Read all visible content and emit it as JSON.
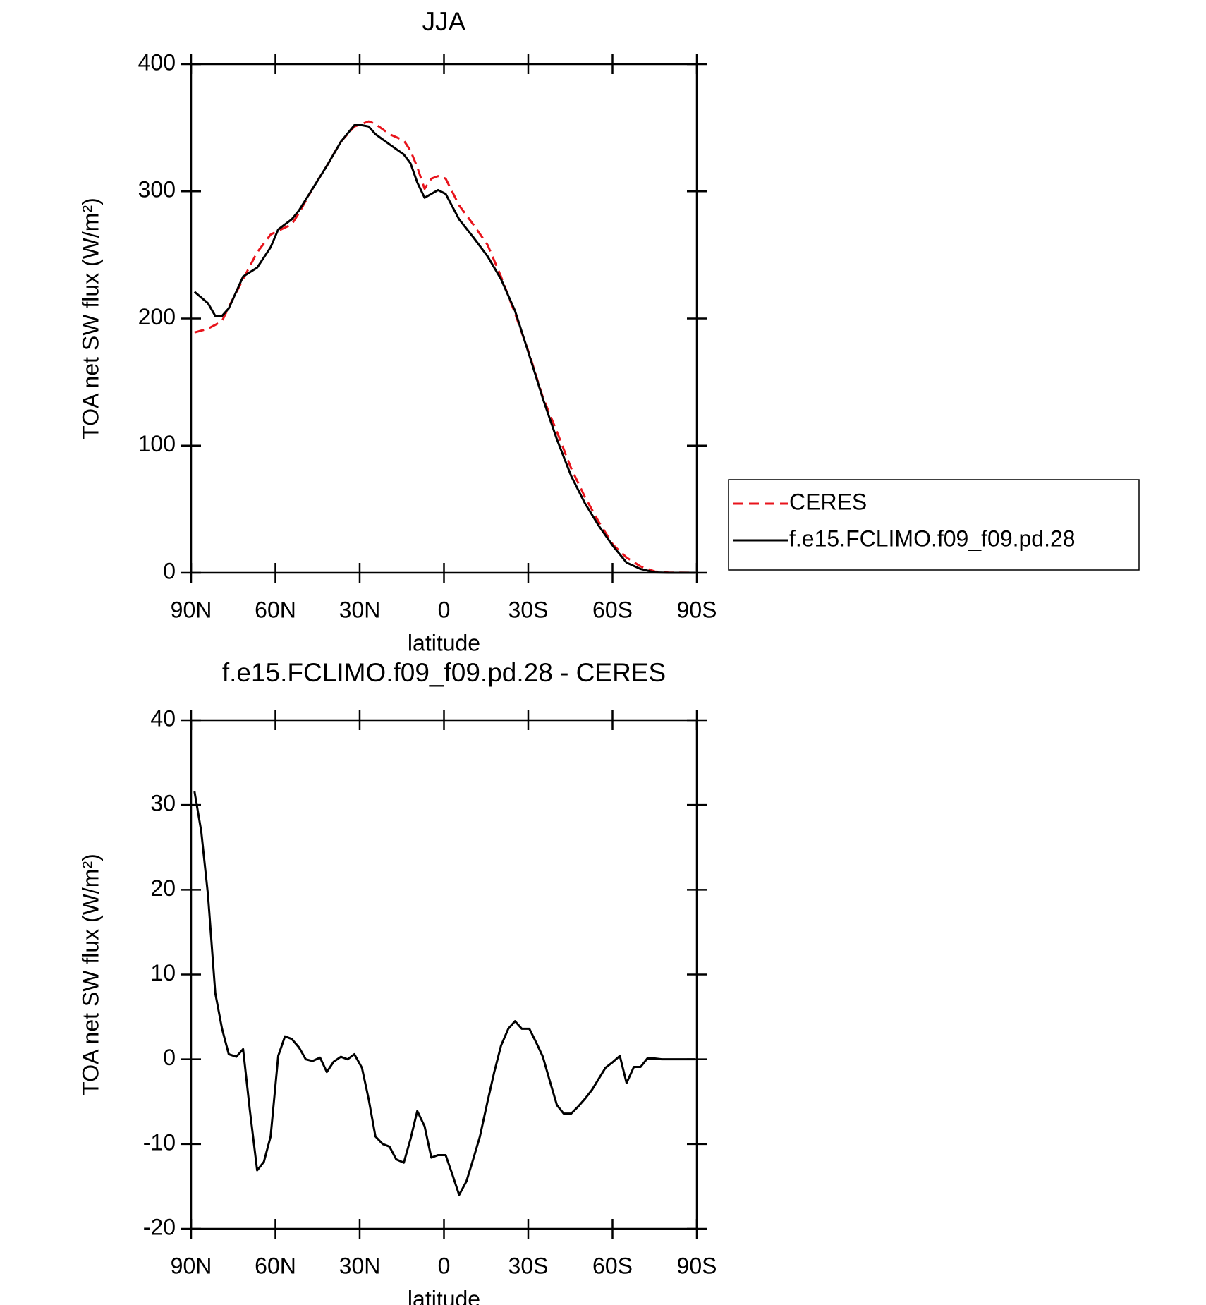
{
  "chart_data": [
    {
      "type": "line",
      "title": "JJA",
      "x_label": "latitude",
      "y_label": "TOA net SW flux (W/m²)",
      "x": [
        88.8,
        84,
        81.4,
        79,
        76.6,
        71.5,
        66.5,
        61.7,
        59,
        54.2,
        51.6,
        46.8,
        41.7,
        36.7,
        31.9,
        29.2,
        26.8,
        24.4,
        19.4,
        14.3,
        11.9,
        9.5,
        6.9,
        4.5,
        2.1,
        -0.6,
        -5.4,
        -10.4,
        -15.5,
        -20.3,
        -25.3,
        -30.4,
        -35.2,
        -40.2,
        -45.3,
        -50.1,
        -55.1,
        -60.2,
        -65,
        -70,
        -75.1,
        -79.9,
        -89.4
      ],
      "series": [
        {
          "name": "CERES",
          "color": "#e8141c",
          "dash": true,
          "values": [
            189,
            192,
            195,
            198,
            209,
            231,
            252,
            266,
            269,
            274,
            283,
            302,
            320,
            339,
            351,
            353,
            355,
            353,
            345,
            340,
            332,
            319,
            302,
            310,
            312,
            310,
            289,
            274,
            258,
            233,
            204,
            172,
            138,
            111,
            82,
            60,
            40,
            22,
            12,
            5,
            1,
            0.2,
            0
          ]
        },
        {
          "name": "f.e15.FCLIMO.f09_f09.pd.28",
          "color": "#000000",
          "dash": false,
          "values": [
            221,
            212,
            202,
            202,
            208,
            233,
            240,
            256,
            270,
            278,
            285,
            302,
            320,
            339,
            352,
            352,
            351,
            345,
            337,
            329,
            322,
            307,
            295,
            298,
            301,
            298,
            278,
            264,
            249,
            231,
            206,
            171,
            137,
            105,
            76,
            55,
            37,
            21,
            8,
            3,
            0.3,
            0,
            0
          ]
        }
      ],
      "xlim": [
        90,
        -90
      ],
      "xticks": [
        {
          "value": 90,
          "label": "90N"
        },
        {
          "value": 60,
          "label": "60N"
        },
        {
          "value": 30,
          "label": "30N"
        },
        0,
        {
          "value": -30,
          "label": "30S"
        },
        {
          "value": -60,
          "label": "60S"
        },
        {
          "value": -90,
          "label": "90S"
        }
      ],
      "ylim": [
        0,
        400
      ],
      "yticks": [
        0,
        100,
        200,
        300,
        400
      ],
      "legend": "right"
    },
    {
      "type": "line",
      "title": "f.e15.FCLIMO.f09_f09.pd.28 - CERES",
      "x_label": "latitude",
      "y_label": "TOA net SW flux (W/m²)",
      "x": [
        88.8,
        86.4,
        84,
        81.4,
        79,
        76.6,
        73.9,
        71.5,
        69.1,
        66.5,
        64.1,
        61.7,
        59,
        56.6,
        54.2,
        51.6,
        49.2,
        46.8,
        44.1,
        41.7,
        39.3,
        36.7,
        34.3,
        31.9,
        29.2,
        26.8,
        24.4,
        21.8,
        19.4,
        17,
        14.3,
        11.9,
        9.5,
        6.9,
        4.5,
        2.1,
        -0.6,
        -3,
        -5.4,
        -8,
        -10.4,
        -12.8,
        -15.5,
        -17.9,
        -20.3,
        -22.9,
        -25.3,
        -27.7,
        -30.4,
        -32.8,
        -35.2,
        -37.8,
        -40.2,
        -42.6,
        -45.3,
        -47.7,
        -50.1,
        -52.7,
        -55.1,
        -57.5,
        -60.2,
        -62.6,
        -65,
        -67.6,
        -70,
        -72.4,
        -75.1,
        -77.5,
        -79.9,
        -82.5,
        -84.9,
        -87.3,
        -89.4
      ],
      "values": [
        31.6,
        26.9,
        19.4,
        7.8,
        3.6,
        0.6,
        0.3,
        1.2,
        -6,
        -13.1,
        -12.1,
        -9.1,
        0.4,
        2.7,
        2.4,
        1.4,
        0,
        -0.2,
        0.2,
        -1.5,
        -0.3,
        0.3,
        0,
        0.6,
        -1,
        -4.7,
        -9.1,
        -10,
        -10.3,
        -11.8,
        -12.2,
        -9.4,
        -6.1,
        -7.9,
        -11.6,
        -11.3,
        -11.3,
        -13.6,
        -16,
        -14.4,
        -11.8,
        -9.1,
        -5,
        -1.5,
        1.6,
        3.6,
        4.5,
        3.6,
        3.6,
        2,
        0.3,
        -2.7,
        -5.4,
        -6.4,
        -6.4,
        -5.6,
        -4.7,
        -3.6,
        -2.3,
        -1,
        -0.3,
        0.4,
        -2.8,
        -0.9,
        -0.9,
        0.1,
        0.1,
        0,
        0,
        0,
        0,
        0,
        0
      ],
      "color": "#000000",
      "xlim": [
        90,
        -90
      ],
      "xticks": [
        {
          "value": 90,
          "label": "90N"
        },
        {
          "value": 60,
          "label": "60N"
        },
        {
          "value": 30,
          "label": "30N"
        },
        0,
        {
          "value": -30,
          "label": "30S"
        },
        {
          "value": -60,
          "label": "60S"
        },
        {
          "value": -90,
          "label": "90S"
        }
      ],
      "ylim": [
        -20,
        40
      ],
      "yticks": [
        -20,
        -10,
        0,
        10,
        20,
        30,
        40
      ]
    }
  ]
}
